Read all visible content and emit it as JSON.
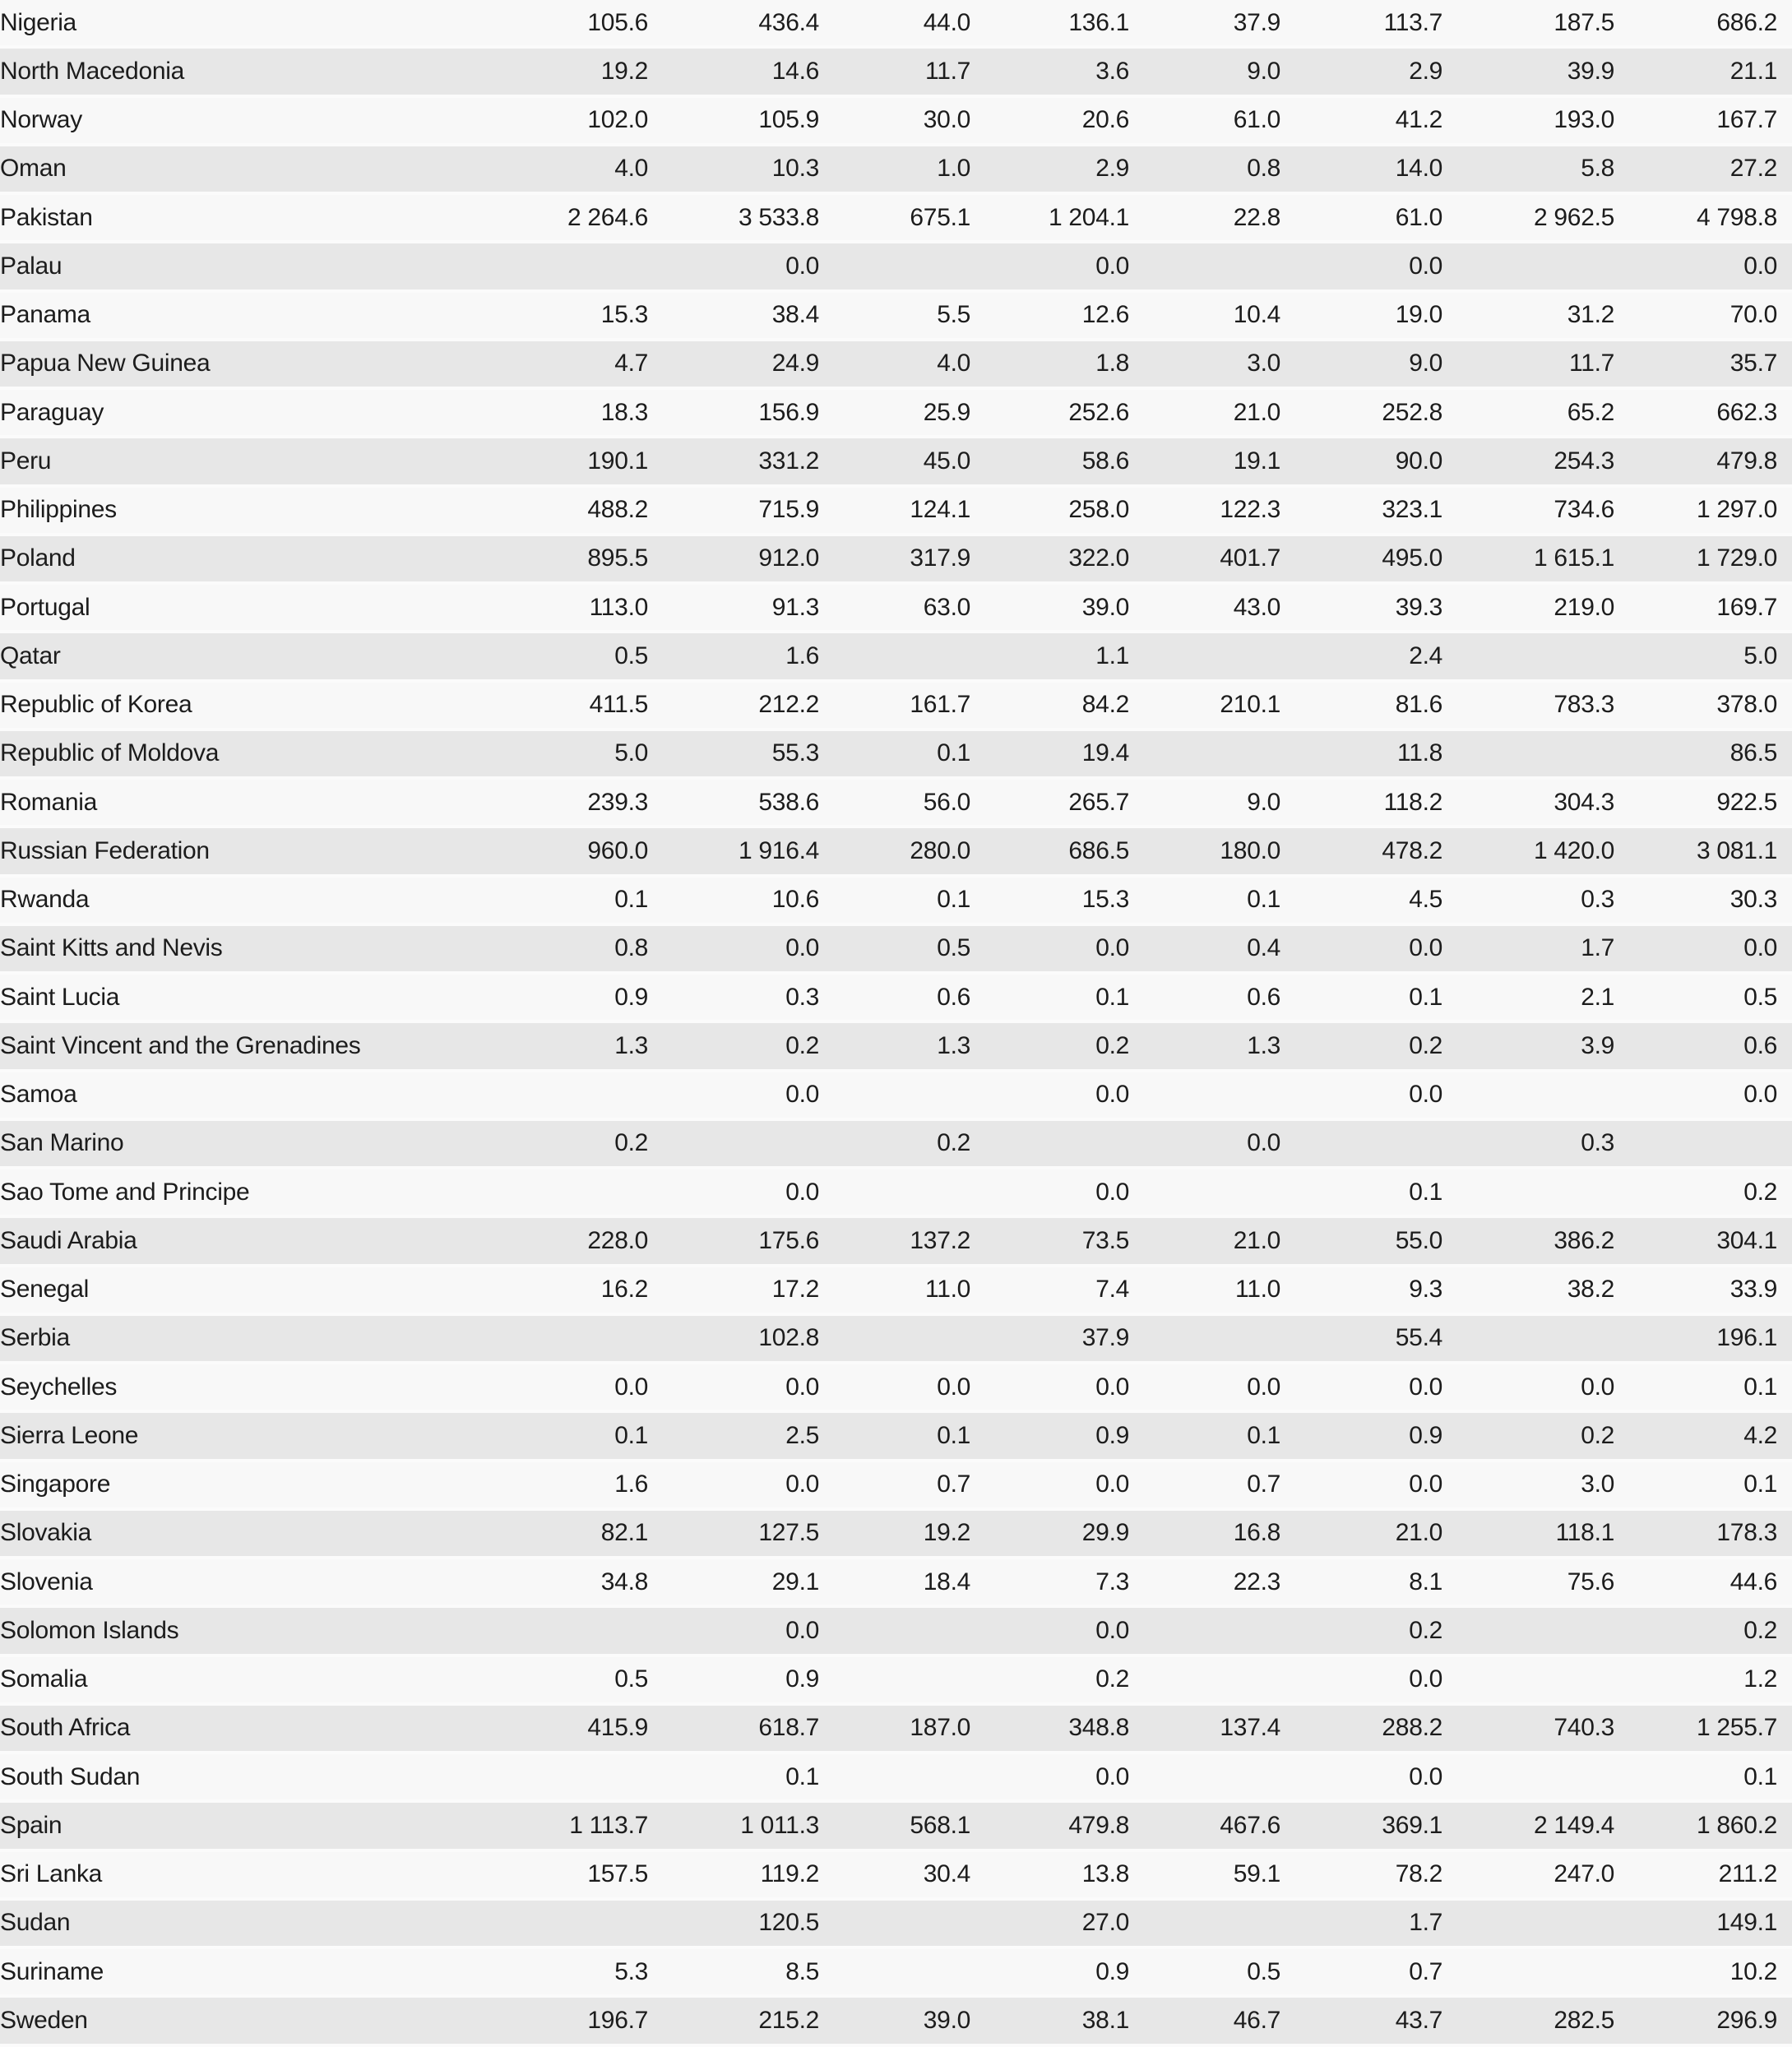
{
  "style": {
    "stripe_light": "#f8f8f8",
    "stripe_dark": "#e7e7e7",
    "separator": "#fbfbfb",
    "text_color": "#1c1c1c",
    "page_background": "#fafafa"
  },
  "table": {
    "num_value_columns": 8,
    "rows": [
      {
        "country": "Nigeria",
        "values": [
          "105.6",
          "436.4",
          "44.0",
          "136.1",
          "37.9",
          "113.7",
          "187.5",
          "686.2"
        ]
      },
      {
        "country": "North Macedonia",
        "values": [
          "19.2",
          "14.6",
          "11.7",
          "3.6",
          "9.0",
          "2.9",
          "39.9",
          "21.1"
        ]
      },
      {
        "country": "Norway",
        "values": [
          "102.0",
          "105.9",
          "30.0",
          "20.6",
          "61.0",
          "41.2",
          "193.0",
          "167.7"
        ]
      },
      {
        "country": "Oman",
        "values": [
          "4.0",
          "10.3",
          "1.0",
          "2.9",
          "0.8",
          "14.0",
          "5.8",
          "27.2"
        ]
      },
      {
        "country": "Pakistan",
        "values": [
          "2 264.6",
          "3 533.8",
          "675.1",
          "1 204.1",
          "22.8",
          "61.0",
          "2 962.5",
          "4 798.8"
        ]
      },
      {
        "country": "Palau",
        "values": [
          "",
          "0.0",
          "",
          "0.0",
          "",
          "0.0",
          "",
          "0.0"
        ]
      },
      {
        "country": "Panama",
        "values": [
          "15.3",
          "38.4",
          "5.5",
          "12.6",
          "10.4",
          "19.0",
          "31.2",
          "70.0"
        ]
      },
      {
        "country": "Papua New Guinea",
        "values": [
          "4.7",
          "24.9",
          "4.0",
          "1.8",
          "3.0",
          "9.0",
          "11.7",
          "35.7"
        ]
      },
      {
        "country": "Paraguay",
        "values": [
          "18.3",
          "156.9",
          "25.9",
          "252.6",
          "21.0",
          "252.8",
          "65.2",
          "662.3"
        ]
      },
      {
        "country": "Peru",
        "values": [
          "190.1",
          "331.2",
          "45.0",
          "58.6",
          "19.1",
          "90.0",
          "254.3",
          "479.8"
        ]
      },
      {
        "country": "Philippines",
        "values": [
          "488.2",
          "715.9",
          "124.1",
          "258.0",
          "122.3",
          "323.1",
          "734.6",
          "1 297.0"
        ]
      },
      {
        "country": "Poland",
        "values": [
          "895.5",
          "912.0",
          "317.9",
          "322.0",
          "401.7",
          "495.0",
          "1 615.1",
          "1 729.0"
        ]
      },
      {
        "country": "Portugal",
        "values": [
          "113.0",
          "91.3",
          "63.0",
          "39.0",
          "43.0",
          "39.3",
          "219.0",
          "169.7"
        ]
      },
      {
        "country": "Qatar",
        "values": [
          "0.5",
          "1.6",
          "",
          "1.1",
          "",
          "2.4",
          "",
          "5.0"
        ]
      },
      {
        "country": "Republic of Korea",
        "values": [
          "411.5",
          "212.2",
          "161.7",
          "84.2",
          "210.1",
          "81.6",
          "783.3",
          "378.0"
        ]
      },
      {
        "country": "Republic of Moldova",
        "values": [
          "5.0",
          "55.3",
          "0.1",
          "19.4",
          "",
          "11.8",
          "",
          "86.5"
        ]
      },
      {
        "country": "Romania",
        "values": [
          "239.3",
          "538.6",
          "56.0",
          "265.7",
          "9.0",
          "118.2",
          "304.3",
          "922.5"
        ]
      },
      {
        "country": "Russian Federation",
        "values": [
          "960.0",
          "1 916.4",
          "280.0",
          "686.5",
          "180.0",
          "478.2",
          "1 420.0",
          "3 081.1"
        ]
      },
      {
        "country": "Rwanda",
        "values": [
          "0.1",
          "10.6",
          "0.1",
          "15.3",
          "0.1",
          "4.5",
          "0.3",
          "30.3"
        ]
      },
      {
        "country": "Saint Kitts and Nevis",
        "values": [
          "0.8",
          "0.0",
          "0.5",
          "0.0",
          "0.4",
          "0.0",
          "1.7",
          "0.0"
        ]
      },
      {
        "country": "Saint Lucia",
        "values": [
          "0.9",
          "0.3",
          "0.6",
          "0.1",
          "0.6",
          "0.1",
          "2.1",
          "0.5"
        ]
      },
      {
        "country": "Saint Vincent and the Grenadines",
        "values": [
          "1.3",
          "0.2",
          "1.3",
          "0.2",
          "1.3",
          "0.2",
          "3.9",
          "0.6"
        ]
      },
      {
        "country": "Samoa",
        "values": [
          "",
          "0.0",
          "",
          "0.0",
          "",
          "0.0",
          "",
          "0.0"
        ]
      },
      {
        "country": "San Marino",
        "values": [
          "0.2",
          "",
          "0.2",
          "",
          "0.0",
          "",
          "0.3",
          ""
        ]
      },
      {
        "country": "Sao Tome and Principe",
        "values": [
          "",
          "0.0",
          "",
          "0.0",
          "",
          "0.1",
          "",
          "0.2"
        ]
      },
      {
        "country": "Saudi Arabia",
        "values": [
          "228.0",
          "175.6",
          "137.2",
          "73.5",
          "21.0",
          "55.0",
          "386.2",
          "304.1"
        ]
      },
      {
        "country": "Senegal",
        "values": [
          "16.2",
          "17.2",
          "11.0",
          "7.4",
          "11.0",
          "9.3",
          "38.2",
          "33.9"
        ]
      },
      {
        "country": "Serbia",
        "values": [
          "",
          "102.8",
          "",
          "37.9",
          "",
          "55.4",
          "",
          "196.1"
        ]
      },
      {
        "country": "Seychelles",
        "values": [
          "0.0",
          "0.0",
          "0.0",
          "0.0",
          "0.0",
          "0.0",
          "0.0",
          "0.1"
        ]
      },
      {
        "country": "Sierra Leone",
        "values": [
          "0.1",
          "2.5",
          "0.1",
          "0.9",
          "0.1",
          "0.9",
          "0.2",
          "4.2"
        ]
      },
      {
        "country": "Singapore",
        "values": [
          "1.6",
          "0.0",
          "0.7",
          "0.0",
          "0.7",
          "0.0",
          "3.0",
          "0.1"
        ]
      },
      {
        "country": "Slovakia",
        "values": [
          "82.1",
          "127.5",
          "19.2",
          "29.9",
          "16.8",
          "21.0",
          "118.1",
          "178.3"
        ]
      },
      {
        "country": "Slovenia",
        "values": [
          "34.8",
          "29.1",
          "18.4",
          "7.3",
          "22.3",
          "8.1",
          "75.6",
          "44.6"
        ]
      },
      {
        "country": "Solomon Islands",
        "values": [
          "",
          "0.0",
          "",
          "0.0",
          "",
          "0.2",
          "",
          "0.2"
        ]
      },
      {
        "country": "Somalia",
        "values": [
          "0.5",
          "0.9",
          "",
          "0.2",
          "",
          "0.0",
          "",
          "1.2"
        ]
      },
      {
        "country": "South Africa",
        "values": [
          "415.9",
          "618.7",
          "187.0",
          "348.8",
          "137.4",
          "288.2",
          "740.3",
          "1 255.7"
        ]
      },
      {
        "country": "South Sudan",
        "values": [
          "",
          "0.1",
          "",
          "0.0",
          "",
          "0.0",
          "",
          "0.1"
        ]
      },
      {
        "country": "Spain",
        "values": [
          "1 113.7",
          "1 011.3",
          "568.1",
          "479.8",
          "467.6",
          "369.1",
          "2 149.4",
          "1 860.2"
        ]
      },
      {
        "country": "Sri Lanka",
        "values": [
          "157.5",
          "119.2",
          "30.4",
          "13.8",
          "59.1",
          "78.2",
          "247.0",
          "211.2"
        ]
      },
      {
        "country": "Sudan",
        "values": [
          "",
          "120.5",
          "",
          "27.0",
          "",
          "1.7",
          "",
          "149.1"
        ]
      },
      {
        "country": "Suriname",
        "values": [
          "5.3",
          "8.5",
          "",
          "0.9",
          "0.5",
          "0.7",
          "",
          "10.2"
        ]
      },
      {
        "country": "Sweden",
        "values": [
          "196.7",
          "215.2",
          "39.0",
          "38.1",
          "46.7",
          "43.7",
          "282.5",
          "296.9"
        ]
      }
    ]
  }
}
